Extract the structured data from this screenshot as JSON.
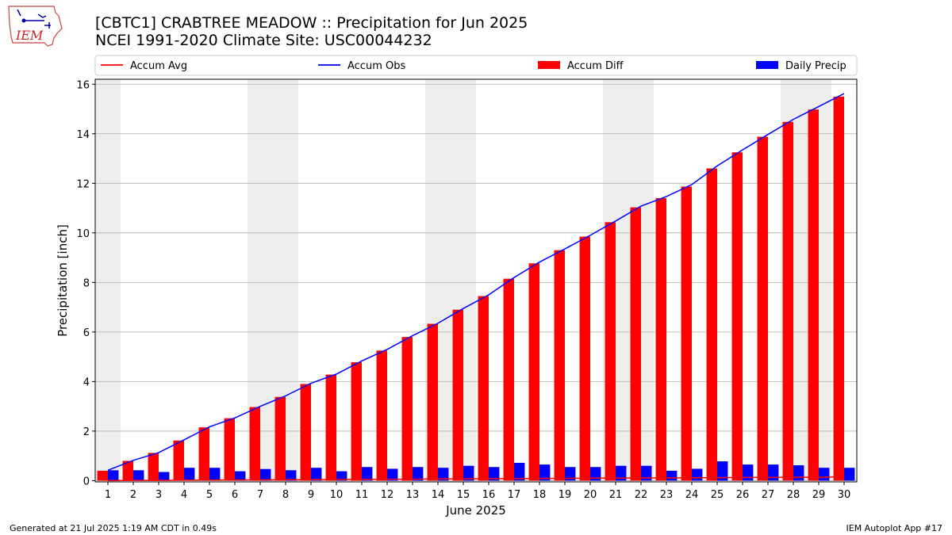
{
  "header": {
    "title_line1": "[CBTC1] CRABTREE MEADOW :: Precipitation for Jun 2025",
    "title_line2": "NCEI 1991-2020 Climate Site: USC00044232",
    "logo_text": "IEM"
  },
  "footer": {
    "generated": "Generated at 21 Jul 2025 1:19 AM CDT in 0.49s",
    "app": "IEM Autoplot App #17"
  },
  "colors": {
    "accum_avg": "#ff0000",
    "accum_obs": "#0000ff",
    "accum_diff": "#ff0000",
    "daily_precip": "#0000ff",
    "weekend_shade": "#eeeeee",
    "grid": "#b0b0b0"
  },
  "chart_data": {
    "type": "bar",
    "xlabel": "June 2025",
    "ylabel": "Precipitation [inch]",
    "ylim": [
      -0.05,
      16.2
    ],
    "yticks": [
      0,
      2,
      4,
      6,
      8,
      10,
      12,
      14,
      16
    ],
    "grid": true,
    "legend_position": "top",
    "days": [
      1,
      2,
      3,
      4,
      5,
      6,
      7,
      8,
      9,
      10,
      11,
      12,
      13,
      14,
      15,
      16,
      17,
      18,
      19,
      20,
      21,
      22,
      23,
      24,
      25,
      26,
      27,
      28,
      29,
      30
    ],
    "weekend_days": [
      1,
      7,
      8,
      14,
      15,
      21,
      22,
      28,
      29
    ],
    "series": [
      {
        "name": "Accum Avg",
        "kind": "line",
        "values": [
          0.0,
          0.01,
          0.01,
          0.02,
          0.02,
          0.03,
          0.03,
          0.04,
          0.04,
          0.05,
          0.05,
          0.06,
          0.06,
          0.07,
          0.07,
          0.08,
          0.08,
          0.09,
          0.09,
          0.1,
          0.1,
          0.11,
          0.11,
          0.12,
          0.12,
          0.13,
          0.13,
          0.14,
          0.14,
          0.15
        ]
      },
      {
        "name": "Accum Obs",
        "kind": "line",
        "values": [
          0.42,
          0.82,
          1.13,
          1.65,
          2.17,
          2.53,
          3.0,
          3.42,
          3.93,
          4.3,
          4.83,
          5.3,
          5.85,
          6.35,
          6.95,
          7.5,
          8.2,
          8.82,
          9.35,
          9.9,
          10.48,
          11.08,
          11.47,
          11.95,
          12.7,
          13.35,
          13.97,
          14.58,
          15.1,
          15.62
        ]
      },
      {
        "name": "Accum Diff",
        "kind": "bar",
        "values": [
          0.4,
          0.8,
          1.12,
          1.62,
          2.15,
          2.52,
          2.97,
          3.38,
          3.9,
          4.28,
          4.78,
          5.25,
          5.8,
          6.33,
          6.9,
          7.45,
          8.15,
          8.77,
          9.3,
          9.85,
          10.43,
          11.03,
          11.4,
          11.87,
          12.6,
          13.25,
          13.88,
          14.48,
          14.98,
          15.5
        ]
      },
      {
        "name": "Daily Precip",
        "kind": "bar",
        "values": [
          0.42,
          0.42,
          0.35,
          0.52,
          0.52,
          0.38,
          0.47,
          0.42,
          0.52,
          0.38,
          0.55,
          0.48,
          0.55,
          0.52,
          0.6,
          0.55,
          0.72,
          0.65,
          0.55,
          0.55,
          0.6,
          0.6,
          0.4,
          0.48,
          0.78,
          0.65,
          0.65,
          0.62,
          0.52,
          0.52
        ]
      }
    ]
  }
}
